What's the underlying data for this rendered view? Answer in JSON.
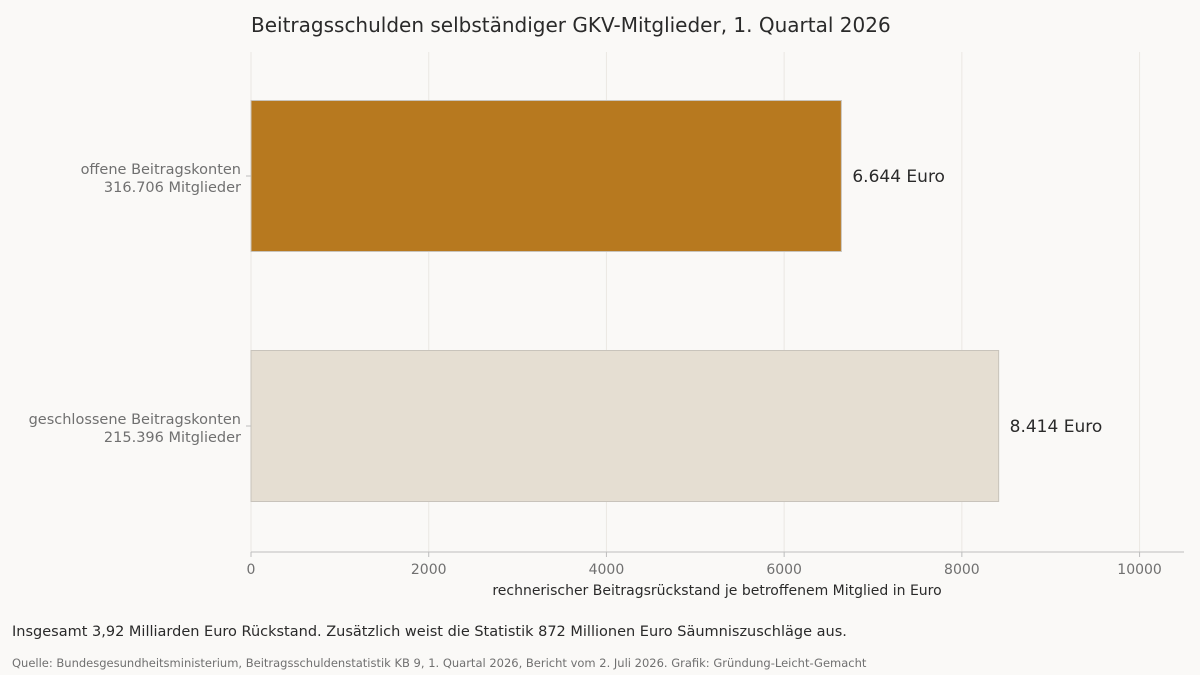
{
  "chart_data": {
    "type": "bar",
    "orientation": "horizontal",
    "title": "Beitragsschulden selbständiger GKV-Mitglieder, 1. Quartal 2026",
    "xlabel": "rechnerischer Beitragsrückstand je betroffenem Mitglied in Euro",
    "ylabel": "",
    "xlim": [
      0,
      10500
    ],
    "xticks": [
      0,
      2000,
      4000,
      6000,
      8000,
      10000
    ],
    "xtick_labels": [
      "0",
      "2000",
      "4000",
      "6000",
      "8000",
      "10000"
    ],
    "grid": "vertical",
    "bars": [
      {
        "label": "offene Beitragskonten",
        "sublabel": "316.706 Mitglieder",
        "value": 6644,
        "value_label": "6.644 Euro",
        "color": "#b7791f"
      },
      {
        "label": "geschlossene Beitragskonten",
        "sublabel": "215.396 Mitglieder",
        "value": 8414,
        "value_label": "8.414 Euro",
        "color": "#e5ded2"
      }
    ]
  },
  "footer": {
    "note": "Insgesamt 3,92 Milliarden Euro Rückstand. Zusätzlich weist die Statistik 872 Millionen Euro Säumniszuschläge aus.",
    "source": "Quelle: Bundesgesundheitsministerium, Beitragsschuldenstatistik KB 9, 1. Quartal 2026, Bericht vom 2. Juli 2026. Grafik: Gründung-Leicht-Gemacht"
  }
}
